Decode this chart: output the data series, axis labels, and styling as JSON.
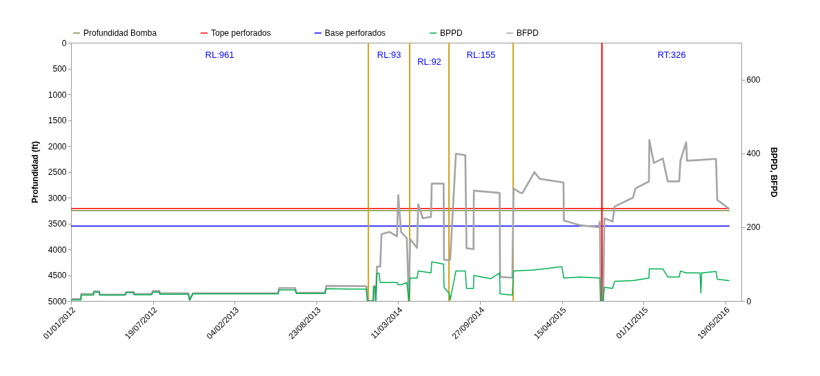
{
  "chart_data": {
    "type": "line",
    "ylabel": "Profundidad (ft)",
    "y2label": "BPPD, BFPD",
    "xlim": [
      "2012-01-01",
      "2016-06-27"
    ],
    "xticks": [
      {
        "value": "2012-01-01",
        "label": "01/01/2012"
      },
      {
        "value": "2012-07-19",
        "label": "19/07/2012"
      },
      {
        "value": "2013-02-04",
        "label": "04/02/2013"
      },
      {
        "value": "2013-08-23",
        "label": "23/08/2013"
      },
      {
        "value": "2014-03-11",
        "label": "11/03/2014"
      },
      {
        "value": "2014-09-27",
        "label": "27/09/2014"
      },
      {
        "value": "2015-04-15",
        "label": "15/04/2015"
      },
      {
        "value": "2015-11-01",
        "label": "01/11/2015"
      },
      {
        "value": "2016-05-19",
        "label": "19/05/2016"
      }
    ],
    "ylim": [
      5000,
      0
    ],
    "yticks": [
      0,
      500,
      1000,
      1500,
      2000,
      2500,
      3000,
      3500,
      4000,
      4500,
      5000
    ],
    "y2lim": [
      0,
      700
    ],
    "y2ticks": [
      0,
      200,
      400,
      600
    ],
    "grid": false,
    "legend": "top",
    "series": [
      {
        "name": "Profundidad Bomba",
        "color": "#77933c",
        "x": [
          "2012-01-01",
          "2016-05-29"
        ],
        "values": [
          3250,
          3250
        ]
      },
      {
        "name": "Tope perforados",
        "color": "#ff0000",
        "x": [
          "2012-01-01",
          "2016-05-29"
        ],
        "values": [
          3210,
          3210
        ]
      },
      {
        "name": "Base perforados",
        "color": "#0000ff",
        "x": [
          "2012-01-01",
          "2016-05-29"
        ],
        "values": [
          3550,
          3550
        ]
      },
      {
        "name": "BPPD",
        "color": "#00b050",
        "axis": "y2",
        "x": [
          "2012-01-01",
          "2012-01-25",
          "2012-01-26",
          "2012-02-25",
          "2012-02-26",
          "2012-03-10",
          "2012-03-11",
          "2012-05-12",
          "2012-05-15",
          "2012-06-02",
          "2012-06-03",
          "2012-07-16",
          "2012-07-19",
          "2012-08-04",
          "2012-08-05",
          "2012-10-14",
          "2012-10-17",
          "2012-10-25",
          "2013-05-21",
          "2013-05-24",
          "2013-07-02",
          "2013-07-05",
          "2013-09-13",
          "2013-09-16",
          "2013-12-23",
          "2013-12-26",
          "2014-01-09",
          "2014-01-10",
          "2014-01-14",
          "2014-01-15",
          "2014-01-18",
          "2014-01-23",
          "2014-01-26",
          "2014-03-08",
          "2014-03-11",
          "2014-03-18",
          "2014-04-01",
          "2014-04-06",
          "2014-04-09",
          "2014-04-26",
          "2014-04-29",
          "2014-05-30",
          "2014-06-01",
          "2014-06-30",
          "2014-07-01",
          "2014-07-14",
          "2014-07-16",
          "2014-07-30",
          "2014-08-22",
          "2014-08-25",
          "2014-09-11",
          "2014-09-12",
          "2014-10-23",
          "2014-11-14",
          "2014-11-15",
          "2014-12-15",
          "2014-12-18",
          "2015-02-07",
          "2015-04-15",
          "2015-04-20",
          "2015-05-30",
          "2015-07-17",
          "2015-07-19",
          "2015-07-25",
          "2015-07-28",
          "2015-08-17",
          "2015-08-22",
          "2015-10-06",
          "2015-11-14",
          "2015-11-15",
          "2015-12-18",
          "2015-12-30",
          "2016-01-27",
          "2016-01-30",
          "2016-02-13",
          "2016-03-18",
          "2016-03-20",
          "2016-03-22",
          "2016-04-26",
          "2016-04-29",
          "2016-05-29"
        ],
        "values": [
          3,
          3,
          16,
          16,
          24,
          24,
          16,
          16,
          23,
          23,
          17,
          17,
          24,
          24,
          18,
          18,
          3,
          19,
          19,
          30,
          30,
          20,
          20,
          33,
          32,
          0,
          0,
          38,
          38,
          0,
          75,
          75,
          50,
          50,
          44,
          44,
          50,
          0,
          62,
          62,
          81,
          76,
          106,
          100,
          37,
          19,
          3,
          81,
          81,
          34,
          34,
          69,
          60,
          76,
          19,
          16,
          81,
          84,
          93,
          62,
          65,
          62,
          0,
          0,
          37,
          34,
          53,
          55,
          62,
          87,
          87,
          65,
          65,
          81,
          76,
          76,
          22,
          76,
          80,
          59,
          55
        ]
      },
      {
        "name": "BFPD",
        "color": "#a6a6a6",
        "axis": "y2",
        "x": [
          "2012-01-01",
          "2012-01-25",
          "2012-01-26",
          "2012-02-25",
          "2012-02-26",
          "2012-03-10",
          "2012-03-11",
          "2012-05-12",
          "2012-05-15",
          "2012-06-02",
          "2012-06-03",
          "2012-07-16",
          "2012-07-19",
          "2012-08-04",
          "2012-08-05",
          "2012-10-14",
          "2012-10-17",
          "2012-10-25",
          "2013-05-21",
          "2013-05-24",
          "2013-07-02",
          "2013-07-05",
          "2013-09-13",
          "2013-09-16",
          "2013-12-23",
          "2013-12-26",
          "2014-01-09",
          "2014-01-10",
          "2014-01-14",
          "2014-01-15",
          "2014-01-18",
          "2014-01-26",
          "2014-01-29",
          "2014-02-18",
          "2014-03-08",
          "2014-03-11",
          "2014-03-18",
          "2014-04-01",
          "2014-04-06",
          "2014-04-09",
          "2014-04-26",
          "2014-04-29",
          "2014-05-10",
          "2014-05-30",
          "2014-06-01",
          "2014-06-30",
          "2014-07-01",
          "2014-07-14",
          "2014-07-16",
          "2014-07-30",
          "2014-08-22",
          "2014-08-25",
          "2014-09-11",
          "2014-09-12",
          "2014-11-14",
          "2014-11-15",
          "2014-12-15",
          "2014-12-18",
          "2015-01-04",
          "2015-01-09",
          "2015-02-07",
          "2015-02-20",
          "2015-04-19",
          "2015-04-20",
          "2015-05-30",
          "2015-07-14",
          "2015-07-17",
          "2015-07-19",
          "2015-07-25",
          "2015-07-28",
          "2015-08-17",
          "2015-08-22",
          "2015-10-06",
          "2015-10-12",
          "2015-11-14",
          "2015-11-15",
          "2015-11-26",
          "2015-12-18",
          "2015-12-30",
          "2016-01-27",
          "2016-01-30",
          "2016-02-13",
          "2016-02-15",
          "2016-04-26",
          "2016-04-29",
          "2016-05-29"
        ],
        "values": [
          5,
          5,
          19,
          19,
          26,
          26,
          17,
          17,
          24,
          24,
          19,
          19,
          27,
          27,
          21,
          21,
          3,
          21,
          21,
          35,
          35,
          22,
          22,
          41,
          40,
          0,
          0,
          40,
          40,
          0,
          93,
          93,
          181,
          187,
          175,
          287,
          187,
          170,
          0,
          168,
          144,
          262,
          224,
          228,
          318,
          318,
          112,
          110,
          112,
          399,
          395,
          143,
          140,
          299,
          293,
          65,
          63,
          305,
          293,
          293,
          349,
          331,
          321,
          218,
          205,
          200,
          215,
          0,
          0,
          224,
          215,
          256,
          280,
          305,
          324,
          436,
          374,
          386,
          324,
          324,
          380,
          430,
          380,
          385,
          274,
          249
        ]
      }
    ],
    "ref_lines": [
      {
        "axis": "x",
        "value": "2013-12-28",
        "color": "#d4a017"
      },
      {
        "axis": "x",
        "value": "2014-04-08",
        "color": "#d4a017"
      },
      {
        "axis": "x",
        "value": "2014-07-13",
        "color": "#d4a017"
      },
      {
        "axis": "x",
        "value": "2014-12-17",
        "color": "#d4a017"
      },
      {
        "axis": "x",
        "value": "2015-07-22",
        "color": "#ff0000"
      }
    ],
    "annotations": [
      "RL:961",
      "RL:93",
      "RL:92",
      "RL:155",
      "RT:326"
    ]
  }
}
